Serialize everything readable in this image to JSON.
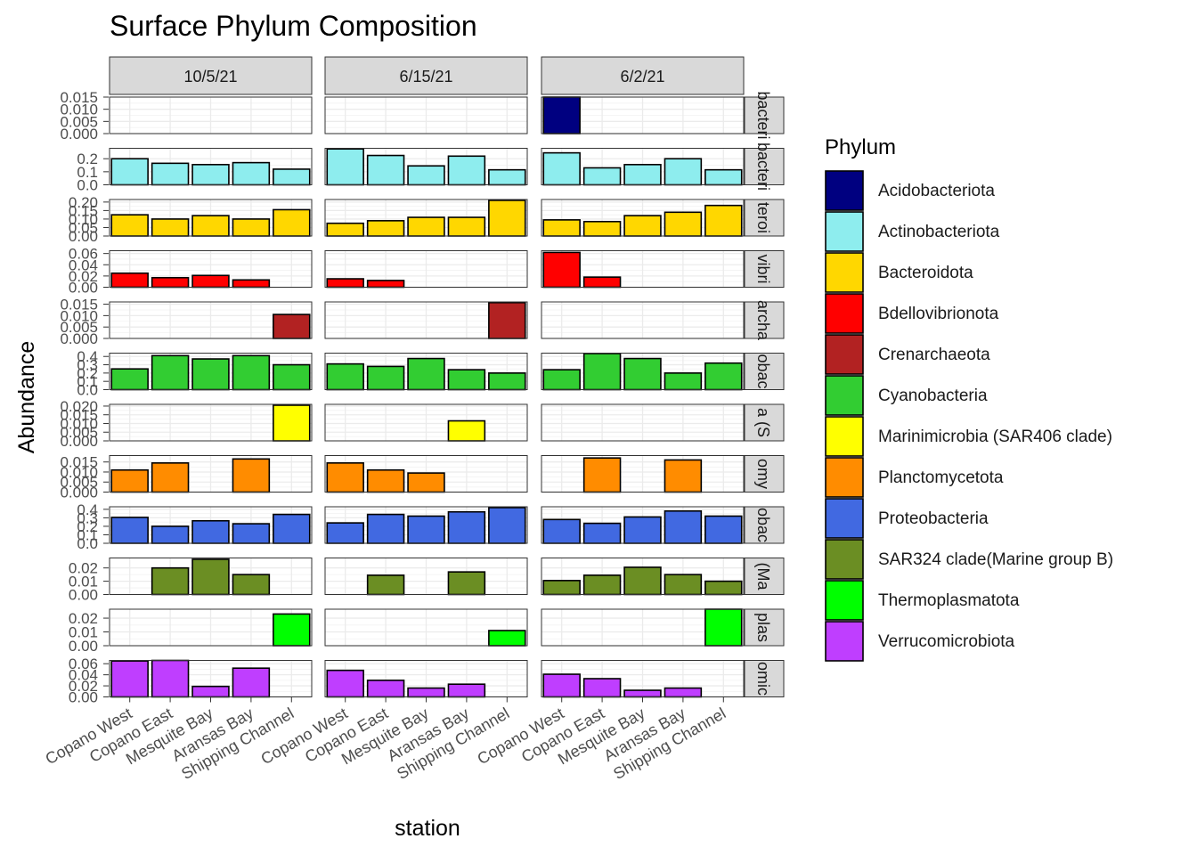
{
  "chart_data": {
    "type": "bar",
    "title": "Surface Phylum Composition",
    "xlabel": "station",
    "ylabel": "Abundance",
    "legend_title": "Phylum",
    "legend_position": "right",
    "grid": true,
    "stations": [
      "Copano West",
      "Copano East",
      "Mesquite Bay",
      "Aransas Bay",
      "Shipping Channel"
    ],
    "dates": [
      "10/5/21",
      "6/15/21",
      "6/2/21"
    ],
    "legend": [
      {
        "name": "Acidobacteriota",
        "color": "#000080"
      },
      {
        "name": "Actinobacteriota",
        "color": "#8EEDEE"
      },
      {
        "name": "Bacteroidota",
        "color": "#FFD700"
      },
      {
        "name": "Bdellovibrionota",
        "color": "#FF0000"
      },
      {
        "name": "Crenarchaeota",
        "color": "#B22222"
      },
      {
        "name": "Cyanobacteria",
        "color": "#32CD32"
      },
      {
        "name": "Marinimicrobia (SAR406 clade)",
        "color": "#FFFF00"
      },
      {
        "name": "Planctomycetota",
        "color": "#FF8C00"
      },
      {
        "name": "Proteobacteria",
        "color": "#4169E1"
      },
      {
        "name": "SAR324 clade(Marine group B)",
        "color": "#6B8E23"
      },
      {
        "name": "Thermoplasmatota",
        "color": "#00FF00"
      },
      {
        "name": "Verrucomicrobiota",
        "color": "#BF3EFF"
      }
    ],
    "facets": [
      {
        "strip": "bacteri",
        "color": "#000080",
        "ylim": [
          0,
          0.015
        ],
        "ticks": [
          "0.000",
          "0.005",
          "0.010",
          "0.015"
        ],
        "values": [
          [
            null,
            null,
            null,
            null,
            null
          ],
          [
            null,
            null,
            null,
            null,
            null
          ],
          [
            0.015,
            null,
            null,
            null,
            null
          ]
        ]
      },
      {
        "strip": "bacteri",
        "color": "#8EEDEE",
        "ylim": [
          0,
          0.28
        ],
        "ticks": [
          "0.0",
          "0.1",
          "0.2"
        ],
        "values": [
          [
            0.2,
            0.165,
            0.155,
            0.17,
            0.12
          ],
          [
            0.275,
            0.225,
            0.145,
            0.22,
            0.115
          ],
          [
            0.245,
            0.13,
            0.155,
            0.2,
            0.115
          ]
        ]
      },
      {
        "strip": "teroi",
        "color": "#FFD700",
        "ylim": [
          0,
          0.215
        ],
        "ticks": [
          "0.00",
          "0.05",
          "0.10",
          "0.15",
          "0.20"
        ],
        "values": [
          [
            0.125,
            0.1,
            0.12,
            0.1,
            0.155
          ],
          [
            0.075,
            0.09,
            0.11,
            0.11,
            0.21
          ],
          [
            0.095,
            0.085,
            0.12,
            0.14,
            0.18
          ]
        ]
      },
      {
        "strip": "vibri",
        "color": "#FF0000",
        "ylim": [
          0,
          0.065
        ],
        "ticks": [
          "0.00",
          "0.02",
          "0.04",
          "0.06"
        ],
        "values": [
          [
            0.025,
            0.017,
            0.021,
            0.013,
            null
          ],
          [
            0.015,
            0.012,
            null,
            null,
            null
          ],
          [
            0.062,
            0.018,
            null,
            null,
            null
          ]
        ]
      },
      {
        "strip": "archa",
        "color": "#B22222",
        "ylim": [
          0,
          0.016
        ],
        "ticks": [
          "0.000",
          "0.005",
          "0.010",
          "0.015"
        ],
        "values": [
          [
            null,
            null,
            null,
            null,
            0.0105
          ],
          [
            null,
            null,
            null,
            null,
            0.0157
          ],
          [
            null,
            null,
            null,
            null,
            null
          ]
        ]
      },
      {
        "strip": "obac",
        "color": "#32CD32",
        "ylim": [
          0,
          0.44
        ],
        "ticks": [
          "0.0",
          "0.1",
          "0.2",
          "0.3",
          "0.4"
        ],
        "values": [
          [
            0.25,
            0.41,
            0.37,
            0.41,
            0.3
          ],
          [
            0.31,
            0.28,
            0.375,
            0.24,
            0.2
          ],
          [
            0.24,
            0.435,
            0.375,
            0.2,
            0.32
          ]
        ]
      },
      {
        "strip": "a (S",
        "color": "#FFFF00",
        "ylim": [
          0,
          0.021
        ],
        "ticks": [
          "0.000",
          "0.005",
          "0.010",
          "0.015",
          "0.020"
        ],
        "values": [
          [
            null,
            null,
            null,
            null,
            0.0205
          ],
          [
            null,
            null,
            null,
            0.0115,
            null
          ],
          [
            null,
            null,
            null,
            null,
            null
          ]
        ]
      },
      {
        "strip": "omy",
        "color": "#FF8C00",
        "ylim": [
          0,
          0.0182
        ],
        "ticks": [
          "0.000",
          "0.005",
          "0.010",
          "0.015"
        ],
        "values": [
          [
            0.011,
            0.0145,
            null,
            0.0165,
            null
          ],
          [
            0.0145,
            0.011,
            0.0095,
            null,
            null
          ],
          [
            null,
            0.017,
            null,
            0.016,
            null
          ]
        ]
      },
      {
        "strip": "obac",
        "color": "#4169E1",
        "ylim": [
          0,
          0.43
        ],
        "ticks": [
          "0.0",
          "0.1",
          "0.2",
          "0.3",
          "0.4"
        ],
        "values": [
          [
            0.305,
            0.2,
            0.265,
            0.23,
            0.34
          ],
          [
            0.24,
            0.34,
            0.32,
            0.37,
            0.42
          ],
          [
            0.28,
            0.235,
            0.31,
            0.38,
            0.32
          ]
        ]
      },
      {
        "strip": "(Ma",
        "color": "#6B8E23",
        "ylim": [
          0,
          0.0275
        ],
        "ticks": [
          "0.00",
          "0.01",
          "0.02"
        ],
        "values": [
          [
            null,
            0.02,
            0.0265,
            0.015,
            null
          ],
          [
            null,
            0.0145,
            null,
            0.017,
            null
          ],
          [
            0.0105,
            0.0145,
            0.0205,
            0.015,
            0.01
          ]
        ]
      },
      {
        "strip": "plas",
        "color": "#00FF00",
        "ylim": [
          0,
          0.0265
        ],
        "ticks": [
          "0.00",
          "0.01",
          "0.02"
        ],
        "values": [
          [
            null,
            null,
            null,
            null,
            0.023
          ],
          [
            null,
            null,
            null,
            null,
            0.011
          ],
          [
            null,
            null,
            null,
            null,
            0.0265
          ]
        ]
      },
      {
        "strip": "omic",
        "color": "#BF3EFF",
        "ylim": [
          0,
          0.066
        ],
        "ticks": [
          "0.00",
          "0.02",
          "0.04",
          "0.06"
        ],
        "values": [
          [
            0.065,
            0.066,
            0.019,
            0.052,
            null
          ],
          [
            0.048,
            0.03,
            0.016,
            0.023,
            null
          ],
          [
            0.041,
            0.033,
            0.012,
            0.016,
            null
          ]
        ]
      }
    ]
  }
}
